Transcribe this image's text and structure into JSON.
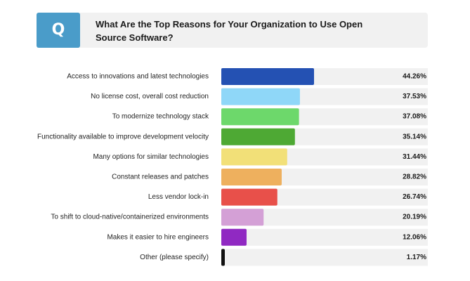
{
  "header": {
    "badge": "Q",
    "title": "What Are the Top Reasons for Your Organization to Use Open Source Software?"
  },
  "chart_data": {
    "type": "bar",
    "orientation": "horizontal",
    "title": "What Are the Top Reasons for Your Organization to Use Open Source Software?",
    "xlabel": "",
    "ylabel": "",
    "xlim": [
      0,
      100
    ],
    "grid": false,
    "categories": [
      "Access to innovations and latest technologies",
      "No license cost, overall cost reduction",
      "To modernize technology stack",
      "Functionality available to improve development velocity",
      "Many options for similar technologies",
      "Constant releases and patches",
      "Less vendor lock-in",
      "To shift to cloud-native/containerized environments",
      "Makes it easier to hire engineers",
      "Other (please specify)"
    ],
    "values": [
      44.26,
      37.53,
      37.08,
      35.14,
      31.44,
      28.82,
      26.74,
      20.19,
      12.06,
      1.17
    ],
    "value_labels": [
      "44.26%",
      "37.53%",
      "37.08%",
      "35.14%",
      "31.44%",
      "28.82%",
      "26.74%",
      "20.19%",
      "12.06%",
      "1.17%"
    ],
    "colors": [
      "#2451b3",
      "#8fd7f8",
      "#6dd86b",
      "#4ea934",
      "#f2e078",
      "#eeb05e",
      "#e8504a",
      "#d4a0d6",
      "#9029c2",
      "#111111"
    ],
    "track_color": "#f1f1f1"
  }
}
